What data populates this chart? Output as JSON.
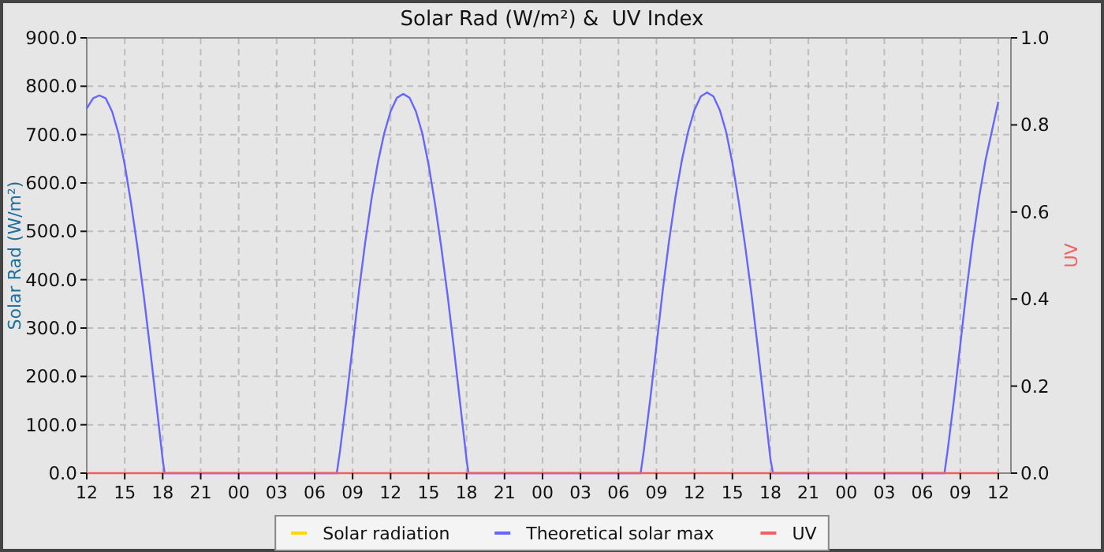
{
  "chart_data": {
    "type": "line",
    "title": "Solar Rad (W/m²) &  UV Index",
    "ylabel": "Solar Rad (W/m²)",
    "y2label": "UV",
    "xlim": [
      12,
      85
    ],
    "xticks": [
      {
        "value": 12,
        "label": "12"
      },
      {
        "value": 15,
        "label": "15"
      },
      {
        "value": 18,
        "label": "18"
      },
      {
        "value": 21,
        "label": "21"
      },
      {
        "value": 24,
        "label": "00"
      },
      {
        "value": 27,
        "label": "03"
      },
      {
        "value": 30,
        "label": "06"
      },
      {
        "value": 33,
        "label": "09"
      },
      {
        "value": 36,
        "label": "12"
      },
      {
        "value": 39,
        "label": "15"
      },
      {
        "value": 42,
        "label": "18"
      },
      {
        "value": 45,
        "label": "21"
      },
      {
        "value": 48,
        "label": "00"
      },
      {
        "value": 51,
        "label": "03"
      },
      {
        "value": 54,
        "label": "06"
      },
      {
        "value": 57,
        "label": "09"
      },
      {
        "value": 60,
        "label": "12"
      },
      {
        "value": 63,
        "label": "15"
      },
      {
        "value": 66,
        "label": "18"
      },
      {
        "value": 69,
        "label": "21"
      },
      {
        "value": 72,
        "label": "00"
      },
      {
        "value": 75,
        "label": "03"
      },
      {
        "value": 78,
        "label": "06"
      },
      {
        "value": 81,
        "label": "09"
      },
      {
        "value": 84,
        "label": "12"
      }
    ],
    "ylim": [
      0,
      900
    ],
    "yticks": [
      {
        "value": 0,
        "label": "0.0"
      },
      {
        "value": 100,
        "label": "100.0"
      },
      {
        "value": 200,
        "label": "200.0"
      },
      {
        "value": 300,
        "label": "300.0"
      },
      {
        "value": 400,
        "label": "400.0"
      },
      {
        "value": 500,
        "label": "500.0"
      },
      {
        "value": 600,
        "label": "600.0"
      },
      {
        "value": 700,
        "label": "700.0"
      },
      {
        "value": 800,
        "label": "800.0"
      },
      {
        "value": 900,
        "label": "900.0"
      }
    ],
    "y2lim": [
      0,
      1
    ],
    "y2ticks": [
      {
        "value": 0,
        "label": "0.0"
      },
      {
        "value": 0.2,
        "label": "0.2"
      },
      {
        "value": 0.4,
        "label": "0.4"
      },
      {
        "value": 0.6,
        "label": "0.6"
      },
      {
        "value": 0.8,
        "label": "0.8"
      },
      {
        "value": 1,
        "label": "1.0"
      }
    ],
    "grid": true,
    "legend": "bottom",
    "line_style": "solid",
    "series": [
      {
        "name": "Solar radiation",
        "color": "#ffd700"
      },
      {
        "name": "Theoretical solar max",
        "color": "#6666ff",
        "x": [
          12,
          12.5,
          13,
          13.5,
          14,
          14.5,
          15,
          15.5,
          16,
          16.5,
          17,
          17.5,
          18,
          18.15,
          31.75,
          32,
          32.5,
          33,
          33.5,
          34,
          34.5,
          35,
          35.5,
          36,
          36.5,
          37,
          37.5,
          38,
          38.5,
          39,
          39.5,
          40,
          40.5,
          41,
          41.5,
          42,
          42.15,
          55.75,
          56,
          56.5,
          57,
          57.5,
          58,
          58.5,
          59,
          59.5,
          60,
          60.5,
          61,
          61.5,
          62,
          62.5,
          63,
          63.5,
          64,
          64.5,
          65,
          65.5,
          66,
          66.2,
          79.75,
          80,
          80.5,
          81,
          81.5,
          82,
          82.5,
          83,
          83.5,
          84
        ],
        "values": [
          754,
          775,
          781,
          775,
          748,
          703,
          638,
          558,
          468,
          368,
          258,
          143,
          28,
          0,
          0,
          45,
          150,
          262,
          377,
          478,
          568,
          643,
          703,
          748,
          776,
          784,
          776,
          748,
          703,
          638,
          558,
          468,
          368,
          258,
          143,
          28,
          0,
          0,
          46,
          151,
          264,
          379,
          481,
          571,
          646,
          706,
          751,
          779,
          787,
          779,
          751,
          706,
          641,
          561,
          471,
          371,
          260,
          145,
          30,
          0,
          0,
          47,
          152,
          266,
          381,
          483,
          573,
          648,
          708,
          768
        ]
      },
      {
        "name": "UV",
        "color": "#f06060",
        "axis": "y2",
        "x": [
          12,
          84
        ],
        "values": [
          0,
          0
        ]
      }
    ]
  }
}
